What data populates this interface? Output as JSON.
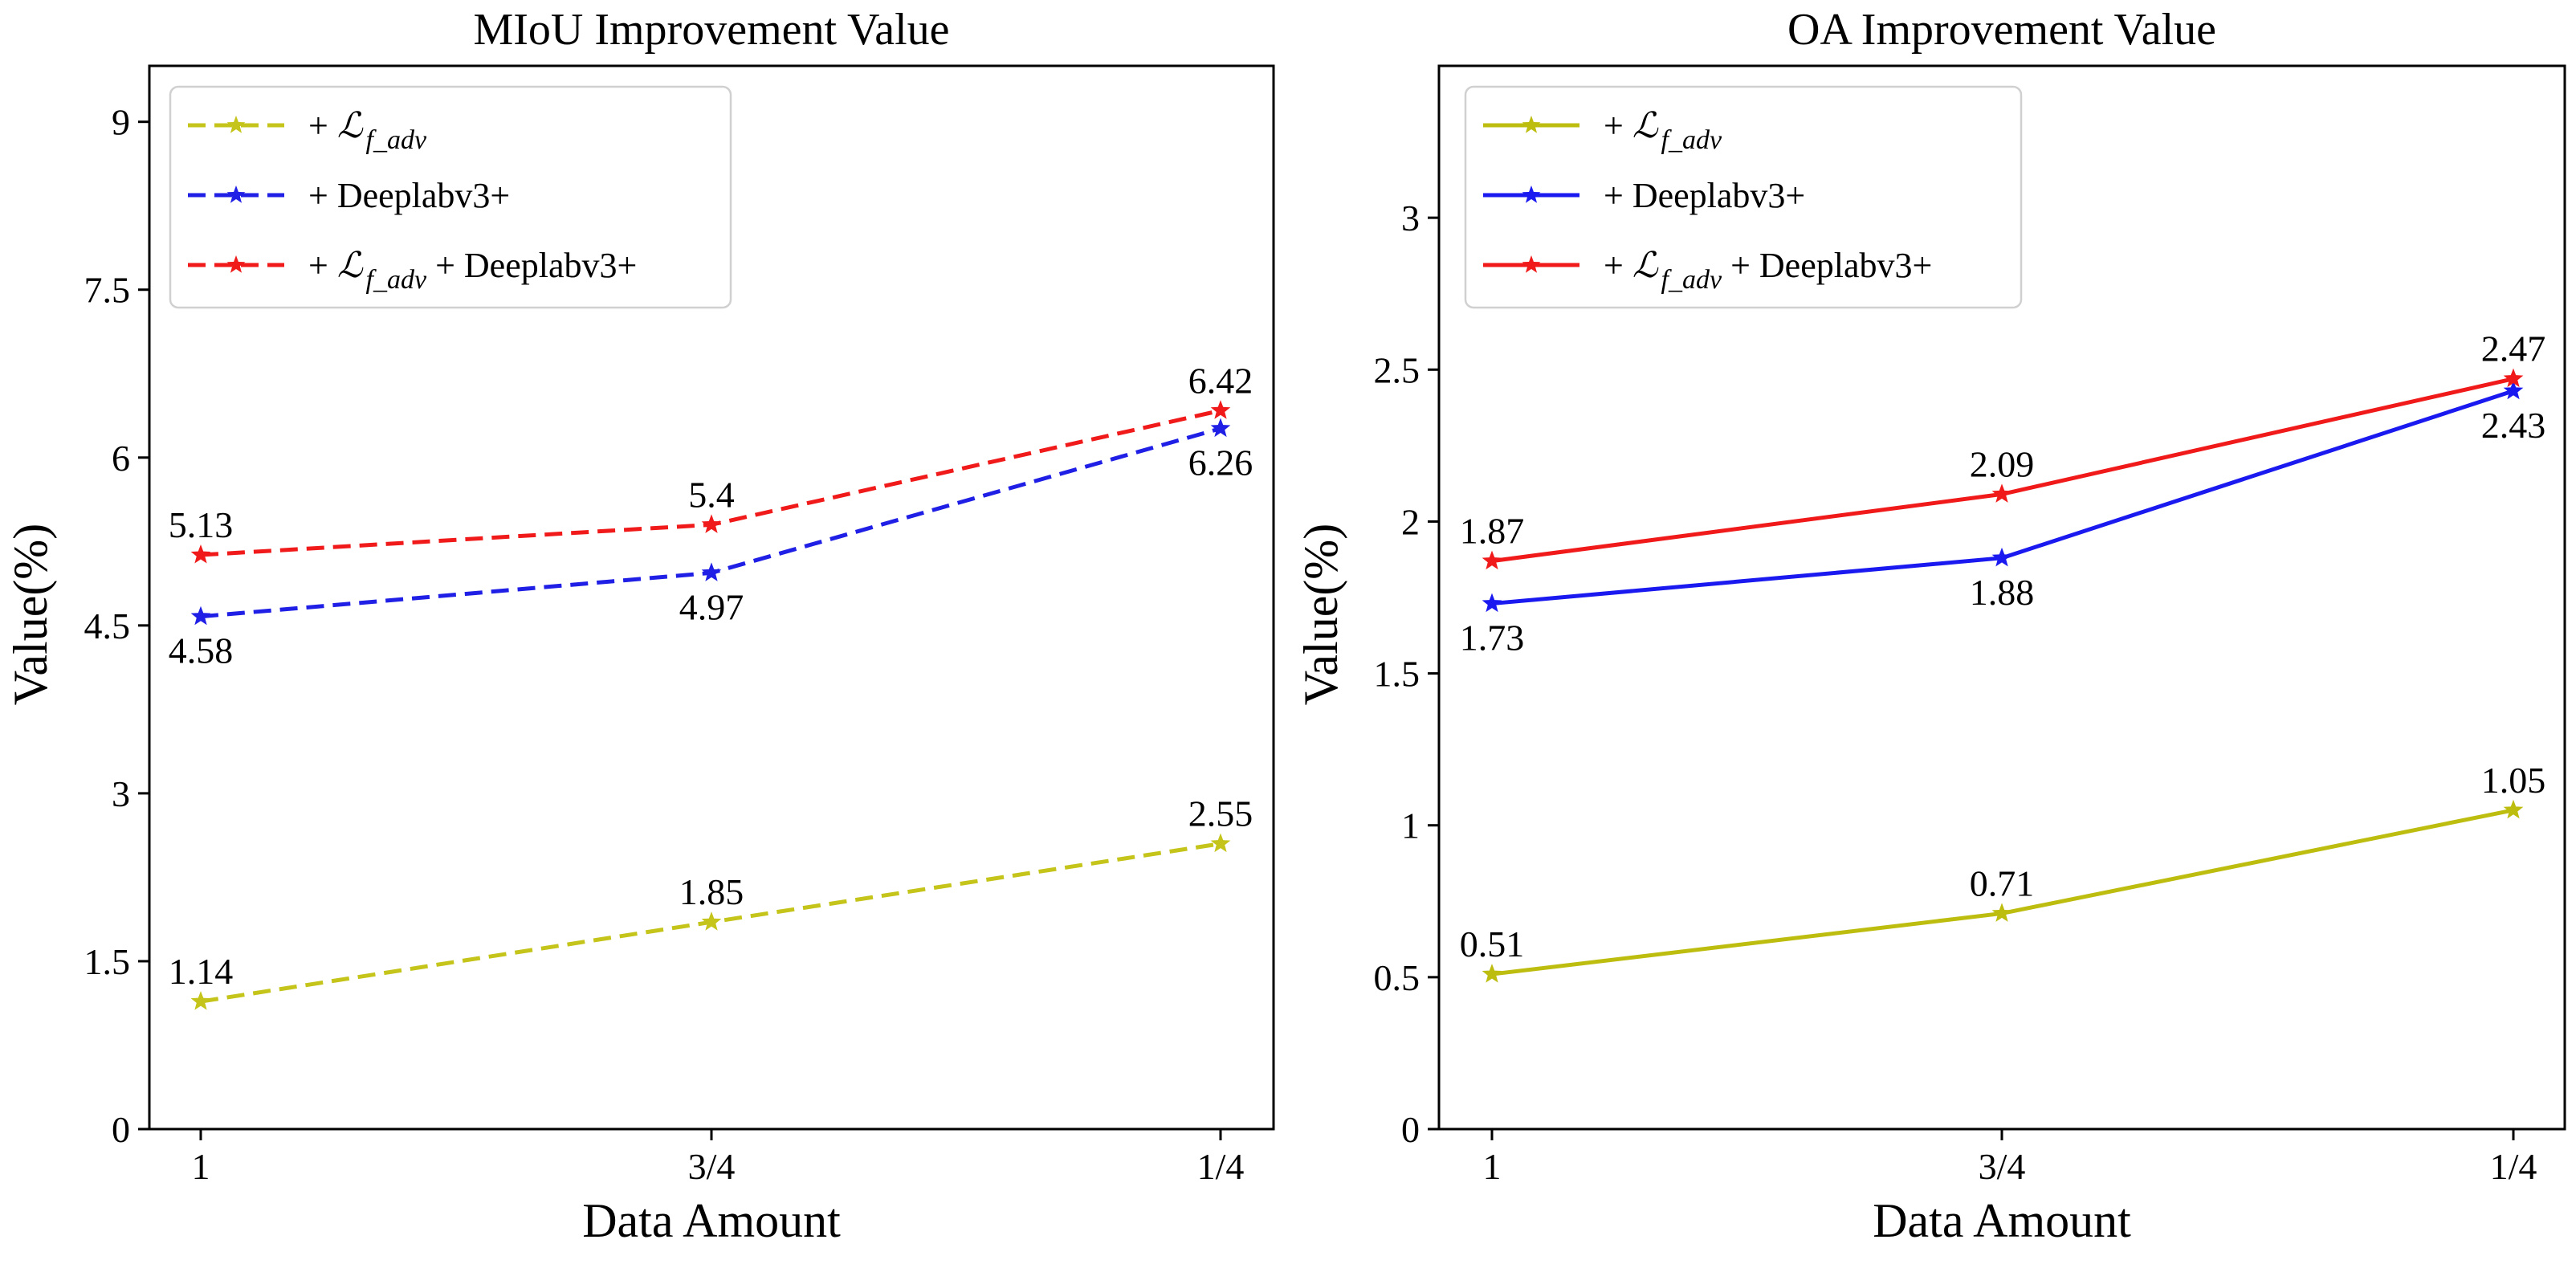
{
  "chart_data": [
    {
      "type": "line",
      "title": "MIoU Improvement Value",
      "xlabel": "Data Amount",
      "ylabel": "Value(%)",
      "categories": [
        "1",
        "3/4",
        "1/4"
      ],
      "ylim": [
        0,
        9.5
      ],
      "yticks": [
        "0",
        "1.5",
        "3",
        "4.5",
        "6",
        "7.5",
        "9"
      ],
      "yticks_values": [
        0,
        1.5,
        3,
        4.5,
        6,
        7.5,
        9
      ],
      "line_style": "dashed",
      "legend_position": "upper-left",
      "series": [
        {
          "name_parts": [
            "+ ",
            "ℒ",
            "f_adv",
            ""
          ],
          "color": "#c4c41a",
          "values": [
            1.14,
            1.85,
            2.55
          ],
          "labels": [
            "1.14",
            "1.85",
            "2.55"
          ],
          "label_positions": [
            "above",
            "above",
            "above"
          ]
        },
        {
          "name_parts": [
            "+ Deeplabv3+",
            "",
            "",
            ""
          ],
          "color": "#1f1fe6",
          "values": [
            4.58,
            4.97,
            6.26
          ],
          "labels": [
            "4.58",
            "4.97",
            "6.26"
          ],
          "label_positions": [
            "below",
            "below",
            "below"
          ]
        },
        {
          "name_parts": [
            "+ ",
            "ℒ",
            "f_adv",
            " + Deeplabv3+"
          ],
          "color": "#f01a1a",
          "values": [
            5.13,
            5.4,
            6.42
          ],
          "labels": [
            "5.13",
            "5.4",
            "6.42"
          ],
          "label_positions": [
            "above",
            "above",
            "above"
          ]
        }
      ]
    },
    {
      "type": "line",
      "title": "OA Improvement Value",
      "xlabel": "Data Amount",
      "ylabel": "Value(%)",
      "categories": [
        "1",
        "3/4",
        "1/4"
      ],
      "ylim": [
        0,
        3.5
      ],
      "yticks": [
        "0",
        "0.5",
        "1",
        "1.5",
        "2",
        "2.5",
        "3"
      ],
      "yticks_values": [
        0,
        0.5,
        1,
        1.5,
        2,
        2.5,
        3
      ],
      "line_style": "solid",
      "legend_position": "upper-left",
      "series": [
        {
          "name_parts": [
            "+ ",
            "ℒ",
            "f_adv",
            ""
          ],
          "color": "#bdbd10",
          "values": [
            0.51,
            0.71,
            1.05
          ],
          "labels": [
            "0.51",
            "0.71",
            "1.05"
          ],
          "label_positions": [
            "above",
            "above",
            "above"
          ]
        },
        {
          "name_parts": [
            "+ Deeplabv3+",
            "",
            "",
            ""
          ],
          "color": "#1a1af0",
          "values": [
            1.73,
            1.88,
            2.43
          ],
          "labels": [
            "1.73",
            "1.88",
            "2.43"
          ],
          "label_positions": [
            "below",
            "below",
            "below"
          ]
        },
        {
          "name_parts": [
            "+ ",
            "ℒ",
            "f_adv",
            " + Deeplabv3+"
          ],
          "color": "#f01a1a",
          "values": [
            1.87,
            2.09,
            2.47
          ],
          "labels": [
            "1.87",
            "2.09",
            "2.47"
          ],
          "label_positions": [
            "above",
            "above",
            "above"
          ]
        }
      ]
    }
  ]
}
